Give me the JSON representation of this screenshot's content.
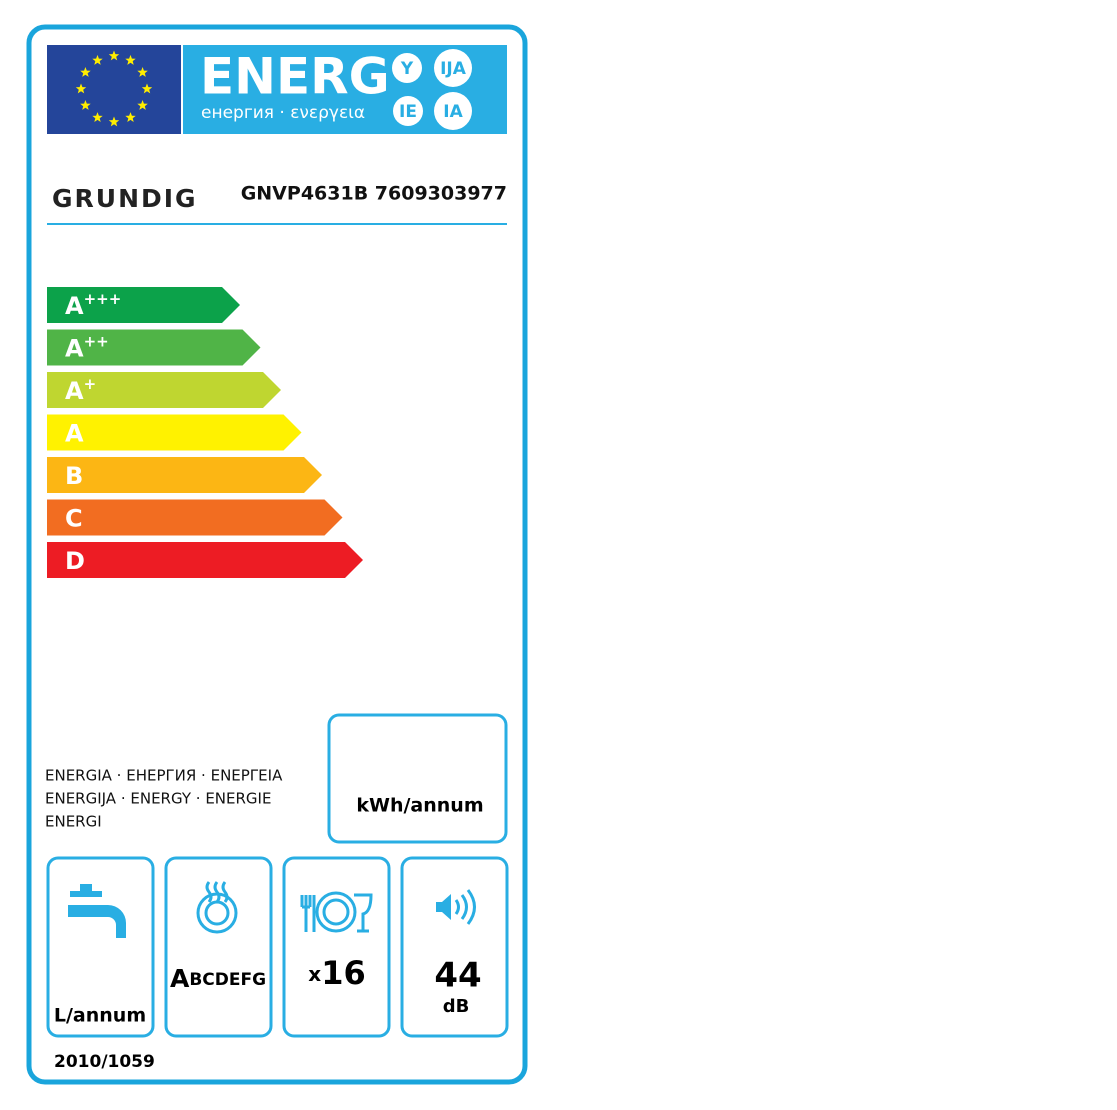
{
  "header": {
    "title": "ENERG",
    "subtitle": "енергия · ενεργεια",
    "languages": [
      "Y",
      "IJA",
      "IE",
      "IA"
    ]
  },
  "brand": "GRUNDIG",
  "model": "GNVP4631B 7609303977",
  "classes": [
    {
      "letter": "A",
      "sup": "+++",
      "color": "#0ca24a"
    },
    {
      "letter": "A",
      "sup": "++",
      "color": "#50b447"
    },
    {
      "letter": "A",
      "sup": "+",
      "color": "#bfd630"
    },
    {
      "letter": "A",
      "color": "#fff200"
    },
    {
      "letter": "B",
      "color": "#fcb614"
    },
    {
      "letter": "C",
      "color": "#f26d21"
    },
    {
      "letter": "D",
      "color": "#ed1c24"
    }
  ],
  "energy_words": [
    "ENERGIA · ЕНЕРГИЯ · ΕΝΕΡΓΕΙΑ",
    "ENERGIJA · ENERGY · ENERGIE",
    "ENERGI"
  ],
  "energy_unit": "kWh/annum",
  "water_unit": "L/annum",
  "drying_class": {
    "first": "A",
    "rest": "BCDEFG"
  },
  "place_settings": {
    "prefix": "x",
    "value": 16
  },
  "noise": {
    "value": 44,
    "unit": "dB"
  },
  "regulation": "2010/1059"
}
